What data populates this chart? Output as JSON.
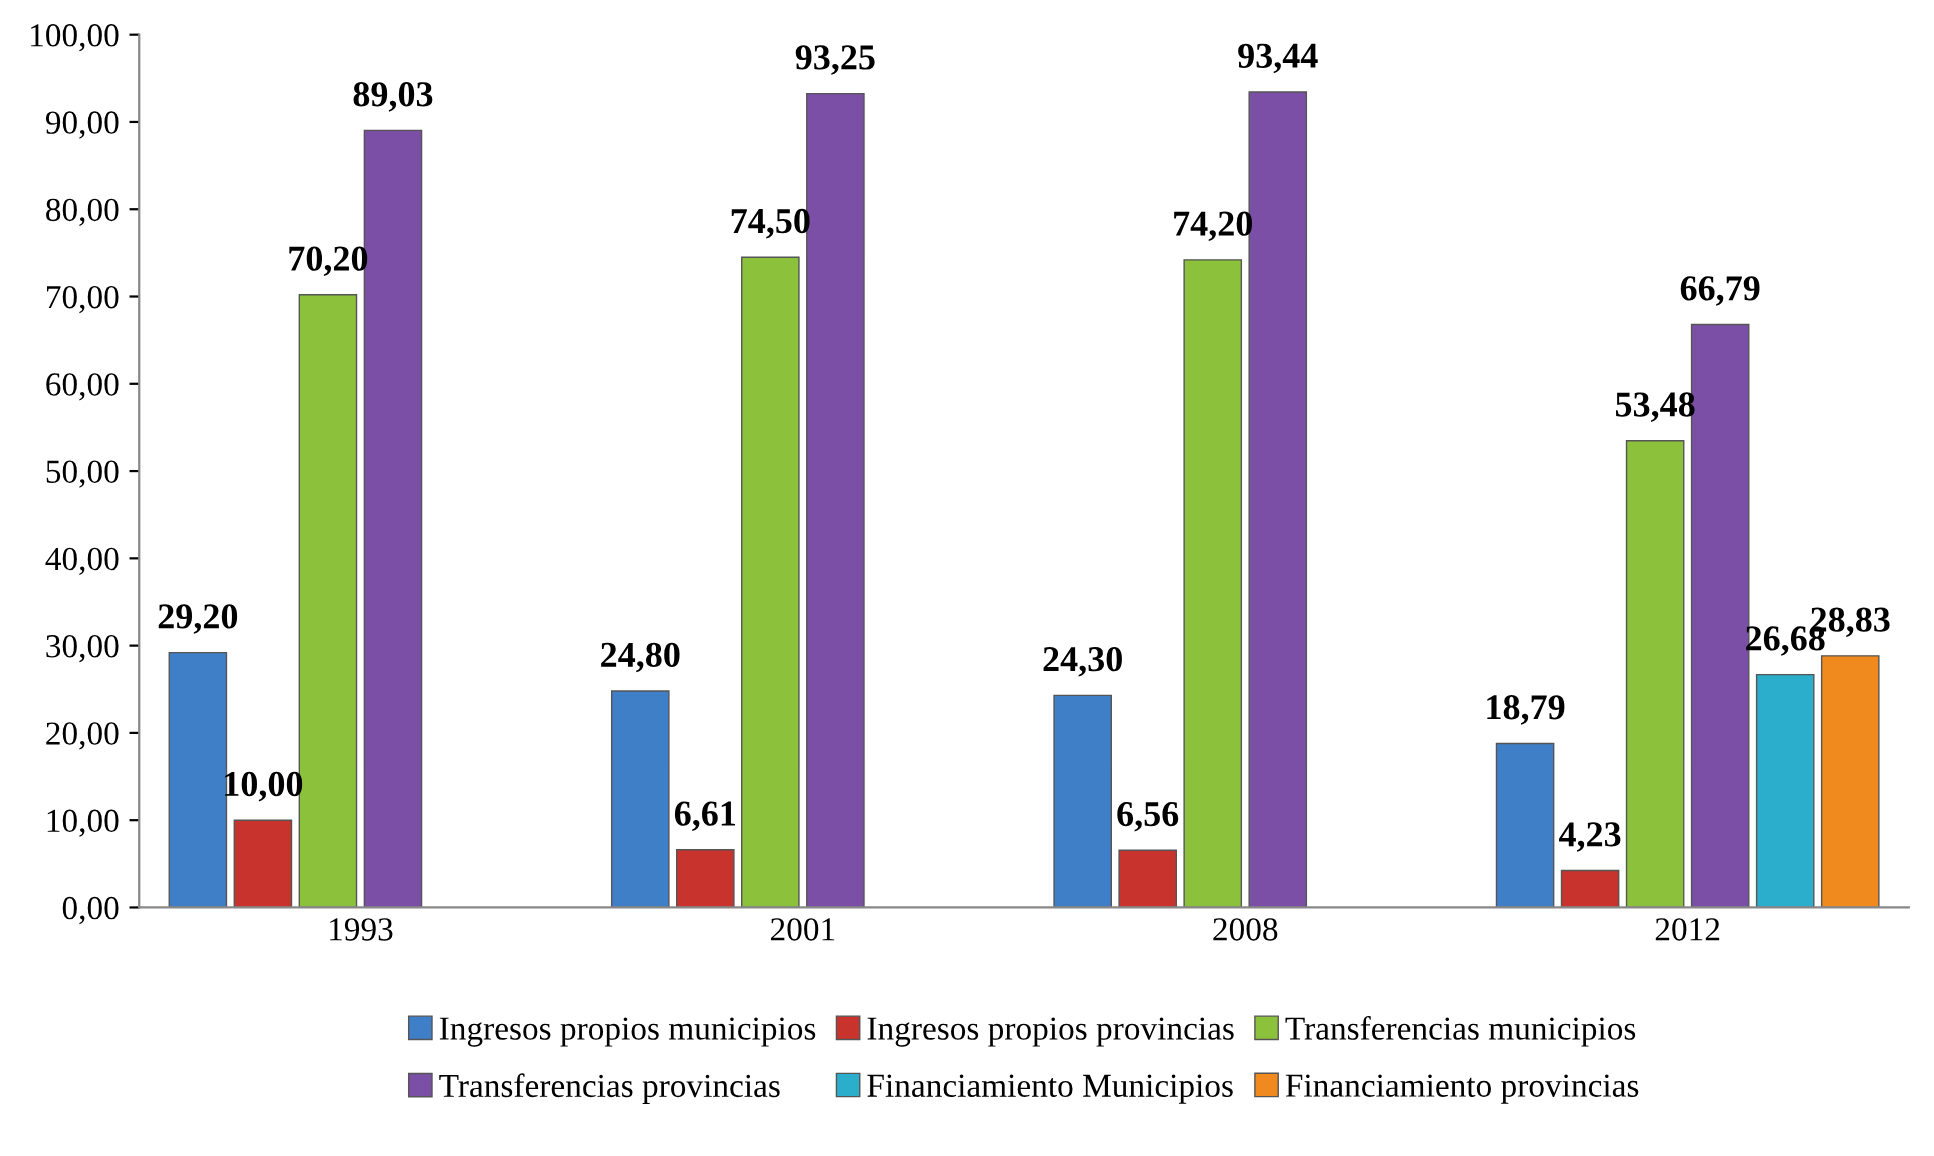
{
  "chart_data": {
    "type": "bar",
    "categories": [
      "1993",
      "2001",
      "2008",
      "2012"
    ],
    "series": [
      {
        "name": "Ingresos propios municipios",
        "color": "#3f7fc8",
        "values": [
          29.2,
          24.8,
          24.3,
          18.79
        ],
        "value_labels": [
          "29,20",
          "24,80",
          "24,30",
          "18,79"
        ]
      },
      {
        "name": "Ingresos propios provincias",
        "color": "#c8332e",
        "values": [
          10.0,
          6.61,
          6.56,
          4.23
        ],
        "value_labels": [
          "10,00",
          "6,61",
          "6,56",
          "4,23"
        ]
      },
      {
        "name": "Transferencias municipios",
        "color": "#8cc13c",
        "values": [
          70.2,
          74.5,
          74.2,
          53.48
        ],
        "value_labels": [
          "70,20",
          "74,50",
          "74,20",
          "53,48"
        ]
      },
      {
        "name": "Transferencias provincias",
        "color": "#7b4fa6",
        "values": [
          89.03,
          93.25,
          93.44,
          66.79
        ],
        "value_labels": [
          "89,03",
          "93,25",
          "93,44",
          "66,79"
        ]
      },
      {
        "name": "Financiamiento Municipios",
        "color": "#2aaecb",
        "values": [
          null,
          null,
          null,
          26.68
        ],
        "value_labels": [
          null,
          null,
          null,
          "26,68"
        ]
      },
      {
        "name": "Financiamiento provincias",
        "color": "#f08a1e",
        "values": [
          null,
          null,
          null,
          28.83
        ],
        "value_labels": [
          null,
          null,
          null,
          "28,83"
        ]
      }
    ],
    "ylim": [
      0,
      100
    ],
    "yticks": [
      {
        "value": 0,
        "label": "0,00"
      },
      {
        "value": 10,
        "label": "10,00"
      },
      {
        "value": 20,
        "label": "20,00"
      },
      {
        "value": 30,
        "label": "30,00"
      },
      {
        "value": 40,
        "label": "40,00"
      },
      {
        "value": 50,
        "label": "50,00"
      },
      {
        "value": 60,
        "label": "60,00"
      },
      {
        "value": 70,
        "label": "70,00"
      },
      {
        "value": 80,
        "label": "80,00"
      },
      {
        "value": 90,
        "label": "90,00"
      },
      {
        "value": 100,
        "label": "100,00"
      }
    ],
    "grid": false,
    "legend": "bottom"
  }
}
